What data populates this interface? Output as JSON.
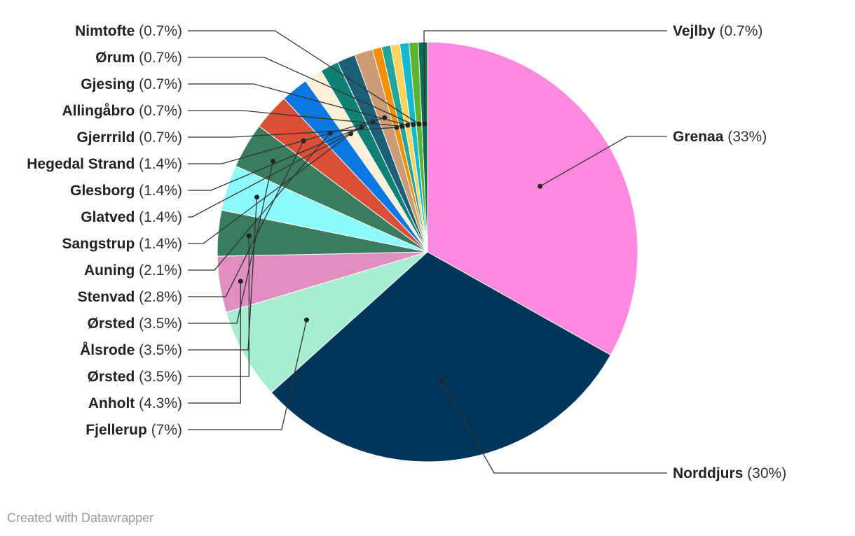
{
  "chart_data": {
    "type": "pie",
    "title": "",
    "slices": [
      {
        "label": "Grenaa",
        "value_label": "(33%)",
        "value": 33,
        "color": "#ff8ae0",
        "side": "right"
      },
      {
        "label": "Norddjurs",
        "value_label": "(30%)",
        "value": 30,
        "color": "#003559",
        "side": "right"
      },
      {
        "label": "Fjellerup",
        "value_label": "(7%)",
        "value": 7,
        "color": "#a6edd2",
        "side": "left"
      },
      {
        "label": "Anholt",
        "value_label": "(4.3%)",
        "value": 4.3,
        "color": "#e18fc1",
        "side": "left"
      },
      {
        "label": "Ørsted",
        "value_label": "(3.5%)",
        "value": 3.5,
        "color": "#3a7d5e",
        "side": "left"
      },
      {
        "label": "Ålsrode",
        "value_label": "(3.5%)",
        "value": 3.5,
        "color": "#8dfbfb",
        "side": "left"
      },
      {
        "label": "Ørsted",
        "value_label": "(3.5%)",
        "value": 3.5,
        "color": "#3a7d5e",
        "side": "left"
      },
      {
        "label": "Stenvad",
        "value_label": "(2.8%)",
        "value": 2.8,
        "color": "#d94f37",
        "side": "left"
      },
      {
        "label": "Auning",
        "value_label": "(2.1%)",
        "value": 2.1,
        "color": "#0a78e0",
        "side": "left"
      },
      {
        "label": "Sangstrup",
        "value_label": "(1.4%)",
        "value": 1.4,
        "color": "#fdf0d8",
        "side": "left"
      },
      {
        "label": "Glatved",
        "value_label": "(1.4%)",
        "value": 1.4,
        "color": "#0f8074",
        "side": "left"
      },
      {
        "label": "Glesborg",
        "value_label": "(1.4%)",
        "value": 1.4,
        "color": "#1b5e76",
        "side": "left"
      },
      {
        "label": "Hegedal Strand",
        "value_label": "(1.4%)",
        "value": 1.4,
        "color": "#cc9c76",
        "side": "left"
      },
      {
        "label": "Gjerrrild",
        "value_label": "(0.7%)",
        "value": 0.7,
        "color": "#f78f05",
        "side": "left"
      },
      {
        "label": "Allingåbro",
        "value_label": "(0.7%)",
        "value": 0.7,
        "color": "#23a59a",
        "side": "left"
      },
      {
        "label": "Gjesing",
        "value_label": "(0.7%)",
        "value": 0.7,
        "color": "#fbd45d",
        "side": "left"
      },
      {
        "label": "Ørum",
        "value_label": "(0.7%)",
        "value": 0.7,
        "color": "#13b9cf",
        "side": "left"
      },
      {
        "label": "Nimtofte",
        "value_label": "(0.7%)",
        "value": 0.7,
        "color": "#5cb531",
        "side": "left"
      },
      {
        "label": "Vejlby",
        "value_label": "(0.7%)",
        "value": 0.7,
        "color": "#0b6b53",
        "side": "right"
      }
    ]
  },
  "footer": {
    "credit": "Created with Datawrapper"
  }
}
